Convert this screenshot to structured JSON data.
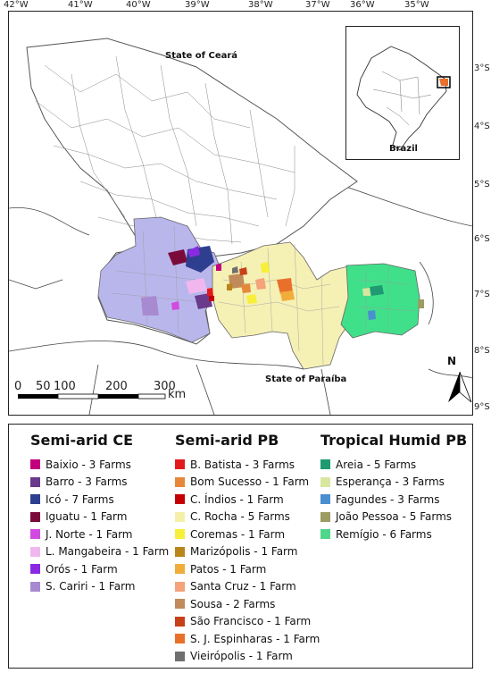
{
  "lon_ticks": [
    "42°W",
    "41°W",
    "40°W",
    "39°W",
    "38°W",
    "37°W",
    "36°W",
    "35°W"
  ],
  "lat_ticks": [
    "3°S",
    "4°S",
    "5°S",
    "6°S",
    "7°S",
    "8°S",
    "9°S"
  ],
  "labels": {
    "ceara": "State of Ceará",
    "paraiba": "State of Paraíba",
    "brazil": "Brazil",
    "north": "N"
  },
  "scale_bar": {
    "ticks": [
      "0",
      "50",
      "100",
      "200",
      "300"
    ],
    "unit": "km"
  },
  "legend": {
    "groups": [
      {
        "title": "Semi-arid CE",
        "items": [
          {
            "label": "Baixio - 3 Farms",
            "color": "#c2007e"
          },
          {
            "label": "Barro - 3 Farms",
            "color": "#6a3a8c"
          },
          {
            "label": "Icó - 7 Farms",
            "color": "#2f3f8f"
          },
          {
            "label": "Iguatu - 1 Farm",
            "color": "#7a0a3a"
          },
          {
            "label": "J. Norte - 1 Farm",
            "color": "#d24be0"
          },
          {
            "label": "L. Mangabeira - 1 Farm",
            "color": "#f2b6ee"
          },
          {
            "label": "Orós - 1 Farm",
            "color": "#8a2be2"
          },
          {
            "label": "S. Cariri - 1 Farm",
            "color": "#a88ad0"
          }
        ]
      },
      {
        "title": "Semi-arid PB",
        "items": [
          {
            "label": "B. Batista - 3 Farms",
            "color": "#e31a1c"
          },
          {
            "label": "Bom Sucesso - 1 Farm",
            "color": "#e6883a"
          },
          {
            "label": "C. Índios - 1 Farm",
            "color": "#c40000"
          },
          {
            "label": "C. Rocha - 5 Farms",
            "color": "#f4f0a8"
          },
          {
            "label": "Coremas - 1 Farm",
            "color": "#f7ef3a"
          },
          {
            "label": "Marizópolis - 1 Farm",
            "color": "#b8861b"
          },
          {
            "label": "Patos - 1 Farm",
            "color": "#f0ad3c"
          },
          {
            "label": "Santa Cruz - 1 Farm",
            "color": "#f4a37a"
          },
          {
            "label": "Sousa - 2 Farms",
            "color": "#c08a5a"
          },
          {
            "label": "São Francisco - 1 Farm",
            "color": "#c8401a"
          },
          {
            "label": "S. J. Espinharas - 1 Farm",
            "color": "#e8702a"
          },
          {
            "label": "Vieirópolis - 1 Farm",
            "color": "#707070"
          }
        ]
      },
      {
        "title": "Tropical Humid PB",
        "items": [
          {
            "label": "Areia - 5 Farms",
            "color": "#1f9a72"
          },
          {
            "label": "Esperança - 3 Farms",
            "color": "#d8e6a0"
          },
          {
            "label": "Fagundes - 3 Farms",
            "color": "#4a8fcf"
          },
          {
            "label": "João Pessoa - 5 Farms",
            "color": "#9c9c62"
          },
          {
            "label": "Remígio - 6 Farms",
            "color": "#4fd68a"
          }
        ]
      }
    ]
  },
  "colors": {
    "cearaSemiArid": "#b9b6ec",
    "paraibaSemiArid": "#f5f0b4",
    "paraibaHumid": "#40e08a",
    "brazilHighlight": "#e8702a"
  }
}
